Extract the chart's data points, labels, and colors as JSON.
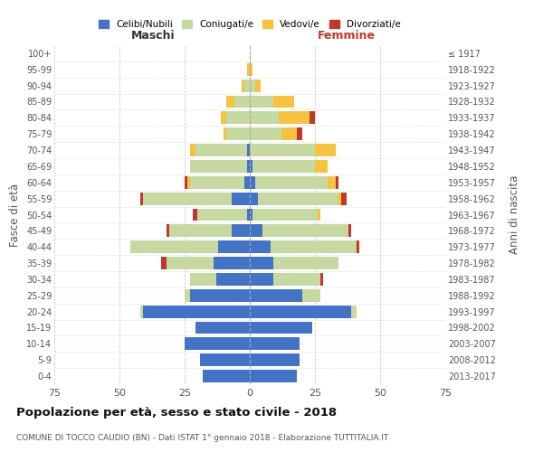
{
  "age_groups": [
    "0-4",
    "5-9",
    "10-14",
    "15-19",
    "20-24",
    "25-29",
    "30-34",
    "35-39",
    "40-44",
    "45-49",
    "50-54",
    "55-59",
    "60-64",
    "65-69",
    "70-74",
    "75-79",
    "80-84",
    "85-89",
    "90-94",
    "95-99",
    "100+"
  ],
  "birth_years": [
    "2013-2017",
    "2008-2012",
    "2003-2007",
    "1998-2002",
    "1993-1997",
    "1988-1992",
    "1983-1987",
    "1978-1982",
    "1973-1977",
    "1968-1972",
    "1963-1967",
    "1958-1962",
    "1953-1957",
    "1948-1952",
    "1943-1947",
    "1938-1942",
    "1933-1937",
    "1928-1932",
    "1923-1927",
    "1918-1922",
    "≤ 1917"
  ],
  "colors": {
    "celibi": "#4472c4",
    "coniugati": "#c5d9a0",
    "vedovi": "#f5c242",
    "divorziati": "#c0392b"
  },
  "maschi": {
    "celibi": [
      18,
      19,
      25,
      21,
      41,
      23,
      13,
      14,
      12,
      7,
      1,
      7,
      2,
      1,
      1,
      0,
      0,
      0,
      0,
      0,
      0
    ],
    "coniugati": [
      0,
      0,
      0,
      0,
      1,
      2,
      10,
      18,
      34,
      24,
      19,
      34,
      21,
      22,
      20,
      9,
      9,
      6,
      2,
      0,
      0
    ],
    "vedovi": [
      0,
      0,
      0,
      0,
      0,
      0,
      0,
      0,
      0,
      0,
      0,
      0,
      1,
      0,
      2,
      1,
      2,
      3,
      1,
      1,
      0
    ],
    "divorziati": [
      0,
      0,
      0,
      0,
      0,
      0,
      0,
      2,
      0,
      1,
      2,
      1,
      1,
      0,
      0,
      0,
      0,
      0,
      0,
      0,
      0
    ]
  },
  "femmine": {
    "nubili": [
      18,
      19,
      19,
      24,
      39,
      20,
      9,
      9,
      8,
      5,
      1,
      3,
      2,
      1,
      0,
      0,
      0,
      0,
      0,
      0,
      0
    ],
    "coniugate": [
      0,
      0,
      0,
      0,
      2,
      7,
      18,
      25,
      33,
      33,
      25,
      31,
      28,
      24,
      25,
      12,
      11,
      9,
      2,
      0,
      0
    ],
    "vedove": [
      0,
      0,
      0,
      0,
      0,
      0,
      0,
      0,
      0,
      0,
      1,
      1,
      3,
      5,
      8,
      6,
      12,
      8,
      2,
      1,
      0
    ],
    "divorziate": [
      0,
      0,
      0,
      0,
      0,
      0,
      1,
      0,
      1,
      1,
      0,
      2,
      1,
      0,
      0,
      2,
      2,
      0,
      0,
      0,
      0
    ]
  },
  "title": "Popolazione per età, sesso e stato civile - 2018",
  "subtitle": "COMUNE DI TOCCO CAUDIO (BN) - Dati ISTAT 1° gennaio 2018 - Elaborazione TUTTITALIA.IT",
  "xlabel_left": "Maschi",
  "xlabel_right": "Femmine",
  "ylabel": "Fasce di età",
  "ylabel_right": "Anni di nascita",
  "xlim": 75,
  "legend_labels": [
    "Celibi/Nubili",
    "Coniugati/e",
    "Vedovi/e",
    "Divorziati/e"
  ],
  "bg_color": "#ffffff",
  "grid_color": "#cccccc"
}
